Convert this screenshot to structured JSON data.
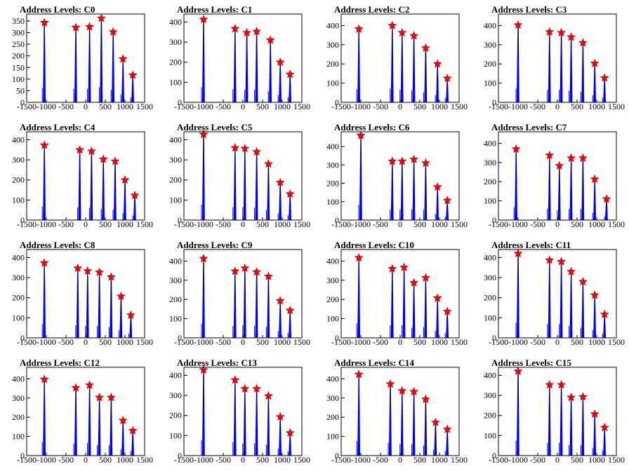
{
  "chart_data": [
    {
      "title": "Address Levels: C0",
      "type": "histogram",
      "xlim": [
        -1500,
        1500
      ],
      "ylim": [
        0,
        380
      ],
      "yticks": [
        0,
        50,
        100,
        150,
        200,
        250,
        300,
        350
      ],
      "peaks": [
        {
          "x": -1050,
          "y": 343
        },
        {
          "x": -250,
          "y": 322
        },
        {
          "x": 100,
          "y": 325
        },
        {
          "x": 400,
          "y": 362
        },
        {
          "x": 700,
          "y": 303
        },
        {
          "x": 950,
          "y": 187
        },
        {
          "x": 1200,
          "y": 117
        }
      ]
    },
    {
      "title": "Address Levels: C1",
      "type": "histogram",
      "xlim": [
        -1500,
        1500
      ],
      "ylim": [
        0,
        440
      ],
      "yticks": [
        0,
        100,
        200,
        300,
        400
      ],
      "peaks": [
        {
          "x": -1000,
          "y": 413
        },
        {
          "x": -200,
          "y": 367
        },
        {
          "x": 100,
          "y": 347
        },
        {
          "x": 350,
          "y": 353
        },
        {
          "x": 700,
          "y": 310
        },
        {
          "x": 950,
          "y": 200
        },
        {
          "x": 1200,
          "y": 140
        }
      ]
    },
    {
      "title": "Address Levels: C2",
      "type": "histogram",
      "xlim": [
        -1500,
        1500
      ],
      "ylim": [
        0,
        460
      ],
      "yticks": [
        0,
        100,
        200,
        300,
        400
      ],
      "peaks": [
        {
          "x": -1050,
          "y": 382
        },
        {
          "x": -200,
          "y": 400
        },
        {
          "x": 50,
          "y": 363
        },
        {
          "x": 350,
          "y": 347
        },
        {
          "x": 650,
          "y": 283
        },
        {
          "x": 950,
          "y": 200
        },
        {
          "x": 1200,
          "y": 125
        }
      ]
    },
    {
      "title": "Address Levels: C3",
      "type": "histogram",
      "xlim": [
        -1500,
        1500
      ],
      "ylim": [
        0,
        460
      ],
      "yticks": [
        0,
        100,
        200,
        300,
        400
      ],
      "peaks": [
        {
          "x": -1000,
          "y": 403
        },
        {
          "x": -200,
          "y": 367
        },
        {
          "x": 100,
          "y": 363
        },
        {
          "x": 350,
          "y": 340
        },
        {
          "x": 650,
          "y": 310
        },
        {
          "x": 950,
          "y": 203
        },
        {
          "x": 1200,
          "y": 127
        }
      ]
    },
    {
      "title": "Address Levels: C4",
      "type": "histogram",
      "xlim": [
        -1500,
        1500
      ],
      "ylim": [
        0,
        440
      ],
      "yticks": [
        0,
        100,
        200,
        300,
        400
      ],
      "peaks": [
        {
          "x": -1050,
          "y": 373
        },
        {
          "x": -150,
          "y": 350
        },
        {
          "x": 150,
          "y": 343
        },
        {
          "x": 450,
          "y": 303
        },
        {
          "x": 750,
          "y": 293
        },
        {
          "x": 1000,
          "y": 200
        },
        {
          "x": 1250,
          "y": 123
        }
      ]
    },
    {
      "title": "Address Levels: C5",
      "type": "histogram",
      "xlim": [
        -1500,
        1500
      ],
      "ylim": [
        0,
        440
      ],
      "yticks": [
        0,
        100,
        200,
        300,
        400
      ],
      "peaks": [
        {
          "x": -1000,
          "y": 427
        },
        {
          "x": -200,
          "y": 360
        },
        {
          "x": 50,
          "y": 357
        },
        {
          "x": 350,
          "y": 340
        },
        {
          "x": 650,
          "y": 280
        },
        {
          "x": 950,
          "y": 187
        },
        {
          "x": 1200,
          "y": 130
        }
      ]
    },
    {
      "title": "Address Levels: C6",
      "type": "histogram",
      "xlim": [
        -1500,
        1500
      ],
      "ylim": [
        0,
        480
      ],
      "yticks": [
        0,
        100,
        200,
        300,
        400
      ],
      "peaks": [
        {
          "x": -1000,
          "y": 460
        },
        {
          "x": -200,
          "y": 320
        },
        {
          "x": 50,
          "y": 320
        },
        {
          "x": 350,
          "y": 330
        },
        {
          "x": 650,
          "y": 310
        },
        {
          "x": 950,
          "y": 180
        },
        {
          "x": 1200,
          "y": 107
        }
      ]
    },
    {
      "title": "Address Levels: C7",
      "type": "histogram",
      "xlim": [
        -1500,
        1500
      ],
      "ylim": [
        0,
        460
      ],
      "yticks": [
        0,
        100,
        200,
        300,
        400
      ],
      "peaks": [
        {
          "x": -1050,
          "y": 370
        },
        {
          "x": -200,
          "y": 337
        },
        {
          "x": 50,
          "y": 283
        },
        {
          "x": 350,
          "y": 323
        },
        {
          "x": 650,
          "y": 323
        },
        {
          "x": 950,
          "y": 213
        },
        {
          "x": 1250,
          "y": 110
        }
      ]
    },
    {
      "title": "Address Levels: C8",
      "type": "histogram",
      "xlim": [
        -1500,
        1500
      ],
      "ylim": [
        0,
        440
      ],
      "yticks": [
        0,
        100,
        200,
        300,
        400
      ],
      "peaks": [
        {
          "x": -1050,
          "y": 373
        },
        {
          "x": -200,
          "y": 347
        },
        {
          "x": 50,
          "y": 333
        },
        {
          "x": 350,
          "y": 327
        },
        {
          "x": 650,
          "y": 303
        },
        {
          "x": 900,
          "y": 207
        },
        {
          "x": 1150,
          "y": 113
        }
      ]
    },
    {
      "title": "Address Levels: C9",
      "type": "histogram",
      "xlim": [
        -1500,
        1500
      ],
      "ylim": [
        0,
        460
      ],
      "yticks": [
        0,
        100,
        200,
        300,
        400
      ],
      "peaks": [
        {
          "x": -1000,
          "y": 413
        },
        {
          "x": -200,
          "y": 347
        },
        {
          "x": 50,
          "y": 363
        },
        {
          "x": 350,
          "y": 343
        },
        {
          "x": 650,
          "y": 320
        },
        {
          "x": 950,
          "y": 193
        },
        {
          "x": 1200,
          "y": 143
        }
      ]
    },
    {
      "title": "Address Levels: C10",
      "type": "histogram",
      "xlim": [
        -1500,
        1500
      ],
      "ylim": [
        0,
        460
      ],
      "yticks": [
        0,
        100,
        200,
        300,
        400
      ],
      "peaks": [
        {
          "x": -1050,
          "y": 417
        },
        {
          "x": -200,
          "y": 360
        },
        {
          "x": 100,
          "y": 367
        },
        {
          "x": 350,
          "y": 287
        },
        {
          "x": 650,
          "y": 313
        },
        {
          "x": 950,
          "y": 207
        },
        {
          "x": 1200,
          "y": 137
        }
      ]
    },
    {
      "title": "Address Levels: C11",
      "type": "histogram",
      "xlim": [
        -1500,
        1500
      ],
      "ylim": [
        0,
        440
      ],
      "yticks": [
        0,
        100,
        200,
        300,
        400
      ],
      "peaks": [
        {
          "x": -1000,
          "y": 420
        },
        {
          "x": -200,
          "y": 387
        },
        {
          "x": 100,
          "y": 380
        },
        {
          "x": 350,
          "y": 330
        },
        {
          "x": 650,
          "y": 280
        },
        {
          "x": 950,
          "y": 213
        },
        {
          "x": 1200,
          "y": 117
        }
      ]
    },
    {
      "title": "Address Levels: C12",
      "type": "histogram",
      "xlim": [
        -1500,
        1500
      ],
      "ylim": [
        0,
        460
      ],
      "yticks": [
        0,
        100,
        200,
        300,
        400
      ],
      "peaks": [
        {
          "x": -1050,
          "y": 397
        },
        {
          "x": -250,
          "y": 353
        },
        {
          "x": 100,
          "y": 367
        },
        {
          "x": 350,
          "y": 303
        },
        {
          "x": 650,
          "y": 303
        },
        {
          "x": 950,
          "y": 183
        },
        {
          "x": 1200,
          "y": 130
        }
      ]
    },
    {
      "title": "Address Levels: C13",
      "type": "histogram",
      "xlim": [
        -1500,
        1500
      ],
      "ylim": [
        0,
        440
      ],
      "yticks": [
        0,
        100,
        200,
        300,
        400
      ],
      "peaks": [
        {
          "x": -1000,
          "y": 427
        },
        {
          "x": -200,
          "y": 377
        },
        {
          "x": 50,
          "y": 333
        },
        {
          "x": 350,
          "y": 333
        },
        {
          "x": 650,
          "y": 297
        },
        {
          "x": 950,
          "y": 193
        },
        {
          "x": 1200,
          "y": 113
        }
      ]
    },
    {
      "title": "Address Levels: C14",
      "type": "histogram",
      "xlim": [
        -1500,
        1500
      ],
      "ylim": [
        0,
        460
      ],
      "yticks": [
        0,
        100,
        200,
        300,
        400
      ],
      "peaks": [
        {
          "x": -1050,
          "y": 423
        },
        {
          "x": -250,
          "y": 373
        },
        {
          "x": 50,
          "y": 337
        },
        {
          "x": 350,
          "y": 333
        },
        {
          "x": 650,
          "y": 293
        },
        {
          "x": 900,
          "y": 173
        },
        {
          "x": 1200,
          "y": 137
        }
      ]
    },
    {
      "title": "Address Levels: C15",
      "type": "histogram",
      "xlim": [
        -1500,
        1500
      ],
      "ylim": [
        0,
        440
      ],
      "yticks": [
        0,
        100,
        200,
        300,
        400
      ],
      "peaks": [
        {
          "x": -1000,
          "y": 420
        },
        {
          "x": -200,
          "y": 353
        },
        {
          "x": 100,
          "y": 353
        },
        {
          "x": 350,
          "y": 290
        },
        {
          "x": 650,
          "y": 293
        },
        {
          "x": 950,
          "y": 207
        },
        {
          "x": 1200,
          "y": 140
        }
      ]
    }
  ],
  "xticks": [
    -1500,
    -1000,
    -500,
    0,
    500,
    1000,
    1500
  ],
  "colors": {
    "histogram": "#0000ee",
    "marker": "#ff0000",
    "axis": "#000000"
  }
}
